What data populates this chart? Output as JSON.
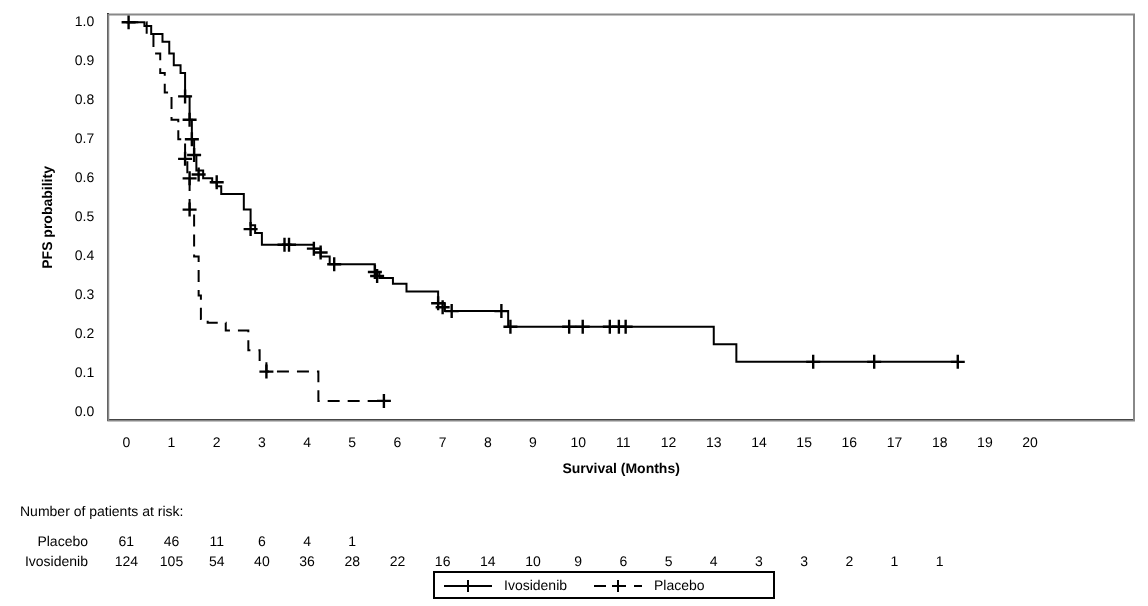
{
  "chart_data": {
    "type": "step",
    "xlabel": "Survival (Months)",
    "ylabel": "PFS probability",
    "xlim": [
      -0.4,
      22.3
    ],
    "ylim": [
      -0.02,
      1.02
    ],
    "xticks": [
      0,
      1,
      2,
      3,
      4,
      5,
      6,
      7,
      8,
      9,
      10,
      11,
      12,
      13,
      14,
      15,
      16,
      17,
      18,
      19,
      20
    ],
    "yticks": [
      {
        "value": 0,
        "label": "0.0"
      },
      {
        "value": 0.1,
        "label": "0.1"
      },
      {
        "value": 0.2,
        "label": "0.2"
      },
      {
        "value": 0.3,
        "label": "0.3"
      },
      {
        "value": 0.4,
        "label": "0.4"
      },
      {
        "value": 0.5,
        "label": "0.5"
      },
      {
        "value": 0.6,
        "label": "0.6"
      },
      {
        "value": 0.7,
        "label": "0.7"
      },
      {
        "value": 0.8,
        "label": "0.8"
      },
      {
        "value": 0.9,
        "label": "0.9"
      },
      {
        "value": 1,
        "label": "1.0"
      }
    ],
    "grid": false,
    "legend": "bottom",
    "marker": "none",
    "series": [
      {
        "name": "Ivosidenib",
        "color": "#000000",
        "line_style": "solid",
        "x": [
          0,
          0.4,
          0.55,
          0.8,
          0.95,
          1.05,
          1.2,
          1.3,
          1.4,
          1.45,
          1.5,
          1.55,
          1.7,
          1.9,
          2.0,
          2.1,
          2.6,
          2.75,
          2.85,
          3.0,
          4.15,
          4.3,
          4.5,
          5.5,
          5.6,
          5.9,
          6.2,
          6.9,
          7.05,
          8.45,
          13.0,
          13.5,
          18.4
        ],
        "values": [
          1.0,
          0.99,
          0.97,
          0.95,
          0.92,
          0.89,
          0.87,
          0.81,
          0.75,
          0.7,
          0.66,
          0.62,
          0.6,
          0.59,
          0.58,
          0.56,
          0.52,
          0.48,
          0.46,
          0.43,
          0.42,
          0.4,
          0.38,
          0.36,
          0.345,
          0.33,
          0.31,
          0.28,
          0.26,
          0.22,
          0.175,
          0.13,
          0.13
        ]
      },
      {
        "name": "Placebo",
        "color": "#000000",
        "line_style": "dashed",
        "x": [
          0,
          0.45,
          0.6,
          0.75,
          0.85,
          1.0,
          1.15,
          1.3,
          1.35,
          1.4,
          1.5,
          1.6,
          1.65,
          1.8,
          2.2,
          2.7,
          2.95,
          3.1,
          4.25,
          5.7
        ],
        "values": [
          1.0,
          0.97,
          0.92,
          0.87,
          0.82,
          0.75,
          0.7,
          0.65,
          0.6,
          0.52,
          0.4,
          0.3,
          0.24,
          0.23,
          0.21,
          0.16,
          0.13,
          0.105,
          0.03,
          0.03
        ]
      },
      {
        "type": "scatter",
        "color": "#000000",
        "marker": "cross",
        "x": [
          0.05,
          1.3,
          1.4,
          1.45,
          1.5,
          1.6,
          2.0,
          2.75,
          3.5,
          3.6,
          4.15,
          4.3,
          4.6,
          5.5,
          5.55,
          6.9,
          7.0,
          7.2,
          8.3,
          8.5,
          9.8,
          10.1,
          10.7,
          10.9,
          11.05,
          15.2,
          16.55,
          18.4
        ],
        "values": [
          1.0,
          0.81,
          0.75,
          0.7,
          0.66,
          0.61,
          0.59,
          0.47,
          0.43,
          0.43,
          0.42,
          0.41,
          0.38,
          0.36,
          0.35,
          0.28,
          0.27,
          0.26,
          0.26,
          0.22,
          0.22,
          0.22,
          0.22,
          0.22,
          0.22,
          0.13,
          0.13,
          0.13
        ]
      },
      {
        "type": "scatter",
        "color": "#000000",
        "marker": "cross",
        "x": [
          1.3,
          1.4,
          1.4,
          3.1,
          5.7
        ],
        "values": [
          0.65,
          0.6,
          0.52,
          0.105,
          0.03
        ]
      }
    ],
    "annotations": [
      "Number of patients at risk:",
      "Placebo 61 46 11 6 4 1",
      "Ivosidenib 124 105 54 40 36 28 22 16 14 10 9 6 5 4 3 3 2 1 1"
    ]
  }
}
